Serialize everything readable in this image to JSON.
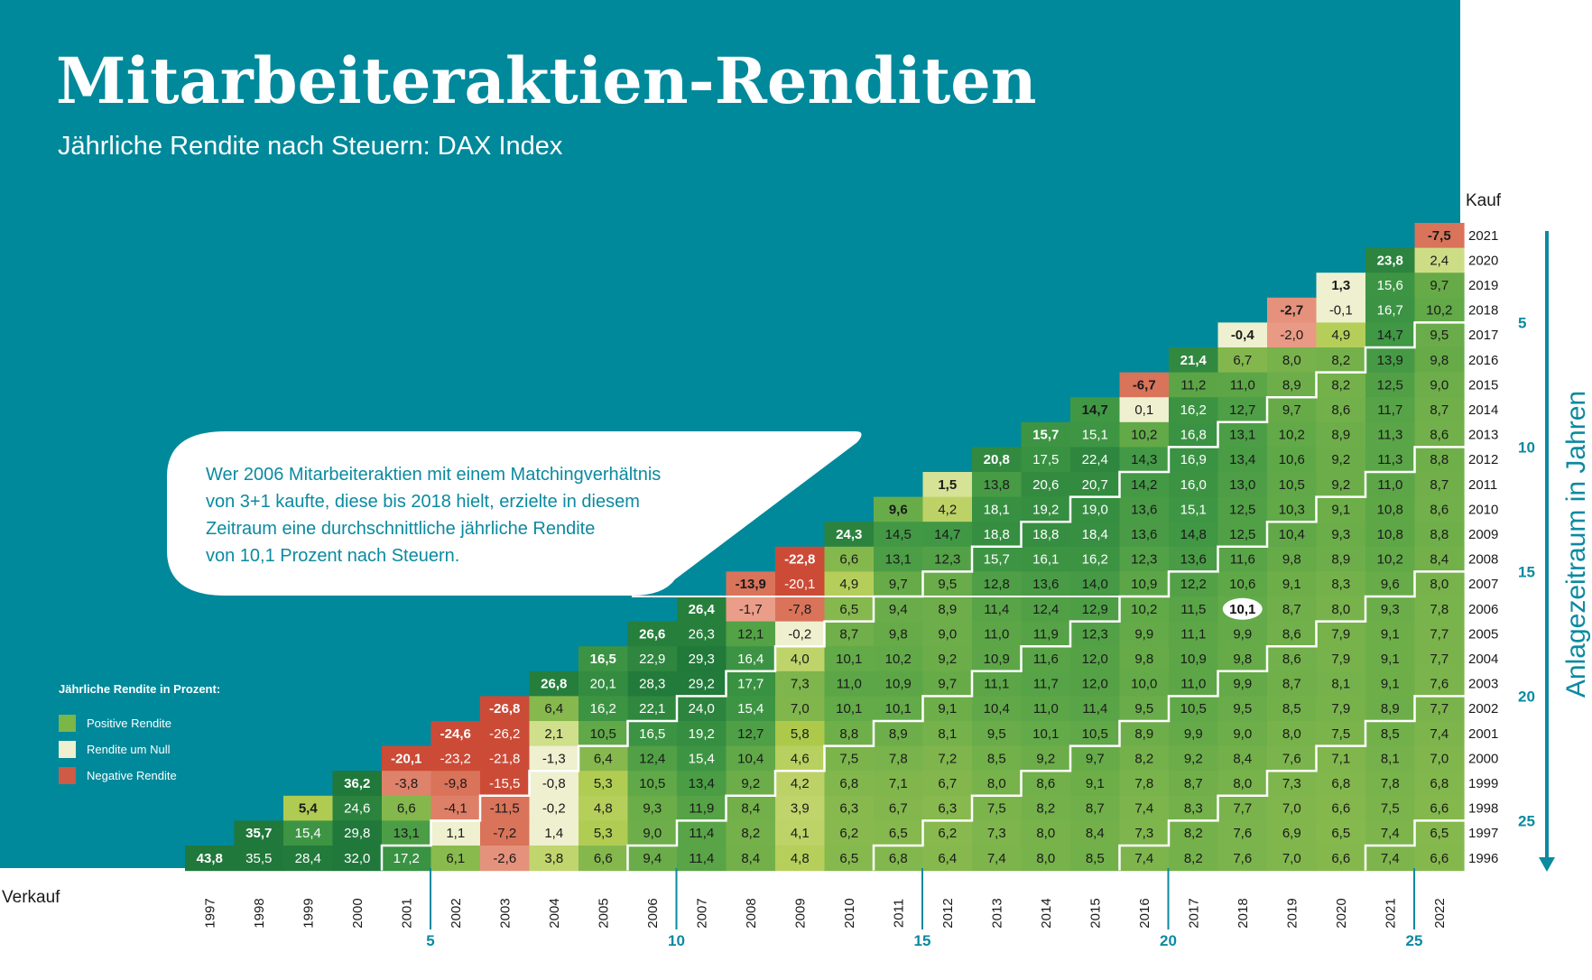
{
  "title": "Mitarbeiteraktien-Renditen",
  "subtitle": "Jährliche Rendite nach Steuern: DAX Index",
  "colors": {
    "background": "#00899b",
    "accent": "#0b8aa0",
    "positive": "#6ab04c",
    "near_zero": "#e9eec6",
    "negative": "#cf5a45"
  },
  "legend": {
    "title": "Jährliche Rendite in Prozent:",
    "items": [
      {
        "label": "Positive Rendite",
        "color": "#7ab648"
      },
      {
        "label": "Rendite um Null",
        "color": "#eef0cf"
      },
      {
        "label": "Negative Rendite",
        "color": "#cf5a45"
      }
    ]
  },
  "callout": {
    "lines": [
      "Wer 2006 Mitarbeiteraktien mit einem Matchingverhältnis",
      "von 3+1 kaufte, diese bis 2018 hielt, erzielte in diesem",
      "Zeitraum eine durchschnittliche jährliche Rendite",
      "von 10,1 Prozent nach Steuern."
    ],
    "highlight": {
      "buy_year": "2006",
      "sell_year": "2018",
      "value": "10,1"
    }
  },
  "chart_data": {
    "type": "heatmap",
    "title": "Mitarbeiteraktien-Renditen",
    "subtitle": "Jährliche Rendite nach Steuern: DAX Index",
    "y_axis_label": "Kauf",
    "x_axis_label": "Verkauf",
    "side_axis_label": "Anlagezeitraum in Jahren",
    "buy_years": [
      "2021",
      "2020",
      "2019",
      "2018",
      "2017",
      "2016",
      "2015",
      "2014",
      "2013",
      "2012",
      "2011",
      "2010",
      "2009",
      "2008",
      "2007",
      "2006",
      "2005",
      "2004",
      "2003",
      "2002",
      "2001",
      "2000",
      "1999",
      "1998",
      "1997",
      "1996"
    ],
    "sell_years": [
      "1997",
      "1998",
      "1999",
      "2000",
      "2001",
      "2002",
      "2003",
      "2004",
      "2005",
      "2006",
      "2007",
      "2008",
      "2009",
      "2010",
      "2011",
      "2012",
      "2013",
      "2014",
      "2015",
      "2016",
      "2017",
      "2018",
      "2019",
      "2020",
      "2021",
      "2022"
    ],
    "holding_period_ticks": [
      "5",
      "10",
      "15",
      "20",
      "25"
    ],
    "rows": [
      [
        "-7,5"
      ],
      [
        "23,8",
        "2,4"
      ],
      [
        "1,3",
        "15,6",
        "9,7"
      ],
      [
        "-2,7",
        "-0,1",
        "16,7",
        "10,2"
      ],
      [
        "-0,4",
        "-2,0",
        "4,9",
        "14,7",
        "9,5"
      ],
      [
        "21,4",
        "6,7",
        "8,0",
        "8,2",
        "13,9",
        "9,8"
      ],
      [
        "-6,7",
        "11,2",
        "11,0",
        "8,9",
        "8,2",
        "12,5",
        "9,0"
      ],
      [
        "14,7",
        "0,1",
        "16,2",
        "12,7",
        "9,7",
        "8,6",
        "11,7",
        "8,7"
      ],
      [
        "15,7",
        "15,1",
        "10,2",
        "16,8",
        "13,1",
        "10,2",
        "8,9",
        "11,3",
        "8,6"
      ],
      [
        "20,8",
        "17,5",
        "22,4",
        "14,3",
        "16,9",
        "13,4",
        "10,6",
        "9,2",
        "11,3",
        "8,8"
      ],
      [
        "1,5",
        "13,8",
        "20,6",
        "20,7",
        "14,2",
        "16,0",
        "13,0",
        "10,5",
        "9,2",
        "11,0",
        "8,7"
      ],
      [
        "9,6",
        "4,2",
        "18,1",
        "19,2",
        "19,0",
        "13,6",
        "15,1",
        "12,5",
        "10,3",
        "9,1",
        "10,8",
        "8,6"
      ],
      [
        "24,3",
        "14,5",
        "14,7",
        "18,8",
        "18,8",
        "18,4",
        "13,6",
        "14,8",
        "12,5",
        "10,4",
        "9,3",
        "10,8",
        "8,8"
      ],
      [
        "-22,8",
        "6,6",
        "13,1",
        "12,3",
        "15,7",
        "16,1",
        "16,2",
        "12,3",
        "13,6",
        "11,6",
        "9,8",
        "8,9",
        "10,2",
        "8,4"
      ],
      [
        "-13,9",
        "-20,1",
        "4,9",
        "9,7",
        "9,5",
        "12,8",
        "13,6",
        "14,0",
        "10,9",
        "12,2",
        "10,6",
        "9,1",
        "8,3",
        "9,6",
        "8,0"
      ],
      [
        "26,4",
        "-1,7",
        "-7,8",
        "6,5",
        "9,4",
        "8,9",
        "11,4",
        "12,4",
        "12,9",
        "10,2",
        "11,5",
        "10,1",
        "8,7",
        "8,0",
        "9,3",
        "7,8"
      ],
      [
        "26,6",
        "26,3",
        "12,1",
        "-0,2",
        "8,7",
        "9,8",
        "9,0",
        "11,0",
        "11,9",
        "12,3",
        "9,9",
        "11,1",
        "9,9",
        "8,6",
        "7,9",
        "9,1",
        "7,7"
      ],
      [
        "16,5",
        "22,9",
        "29,3",
        "16,4",
        "4,0",
        "10,1",
        "10,2",
        "9,2",
        "10,9",
        "11,6",
        "12,0",
        "9,8",
        "10,9",
        "9,8",
        "8,6",
        "7,9",
        "9,1",
        "7,7"
      ],
      [
        "26,8",
        "20,1",
        "28,3",
        "29,2",
        "17,7",
        "7,3",
        "11,0",
        "10,9",
        "9,7",
        "11,1",
        "11,7",
        "12,0",
        "10,0",
        "11,0",
        "9,9",
        "8,7",
        "8,1",
        "9,1",
        "7,6"
      ],
      [
        "-26,8",
        "6,4",
        "16,2",
        "22,1",
        "24,0",
        "15,4",
        "7,0",
        "10,1",
        "10,1",
        "9,1",
        "10,4",
        "11,0",
        "11,4",
        "9,5",
        "10,5",
        "9,5",
        "8,5",
        "7,9",
        "8,9",
        "7,7"
      ],
      [
        "-24,6",
        "-26,2",
        "2,1",
        "10,5",
        "16,5",
        "19,2",
        "12,7",
        "5,8",
        "8,8",
        "8,9",
        "8,1",
        "9,5",
        "10,1",
        "10,5",
        "8,9",
        "9,9",
        "9,0",
        "8,0",
        "7,5",
        "8,5",
        "7,4"
      ],
      [
        "-20,1",
        "-23,2",
        "-21,8",
        "-1,3",
        "6,4",
        "12,4",
        "15,4",
        "10,4",
        "4,6",
        "7,5",
        "7,8",
        "7,2",
        "8,5",
        "9,2",
        "9,7",
        "8,2",
        "9,2",
        "8,4",
        "7,6",
        "7,1",
        "8,1",
        "7,0"
      ],
      [
        "36,2",
        "-3,8",
        "-9,8",
        "-15,5",
        "-0,8",
        "5,3",
        "10,5",
        "13,4",
        "9,2",
        "4,2",
        "6,8",
        "7,1",
        "6,7",
        "8,0",
        "8,6",
        "9,1",
        "7,8",
        "8,7",
        "8,0",
        "7,3",
        "6,8",
        "7,8",
        "6,8"
      ],
      [
        "5,4",
        "24,6",
        "6,6",
        "-4,1",
        "-11,5",
        "-0,2",
        "4,8",
        "9,3",
        "11,9",
        "8,4",
        "3,9",
        "6,3",
        "6,7",
        "6,3",
        "7,5",
        "8,2",
        "8,7",
        "7,4",
        "8,3",
        "7,7",
        "7,0",
        "6,6",
        "7,5",
        "6,6"
      ],
      [
        "35,7",
        "15,4",
        "29,8",
        "13,1",
        "1,1",
        "-7,2",
        "1,4",
        "5,3",
        "9,0",
        "11,4",
        "8,2",
        "4,1",
        "6,2",
        "6,5",
        "6,2",
        "7,3",
        "8,0",
        "8,4",
        "7,3",
        "8,2",
        "7,6",
        "6,9",
        "6,5",
        "7,4",
        "6,5"
      ],
      [
        "43,8",
        "35,5",
        "28,4",
        "32,0",
        "17,2",
        "6,1",
        "-2,6",
        "3,8",
        "6,6",
        "9,4",
        "11,4",
        "8,4",
        "4,8",
        "6,5",
        "6,8",
        "6,4",
        "7,4",
        "8,0",
        "8,5",
        "7,4",
        "8,2",
        "7,6",
        "7,0",
        "6,6",
        "7,4",
        "6,6"
      ]
    ]
  }
}
